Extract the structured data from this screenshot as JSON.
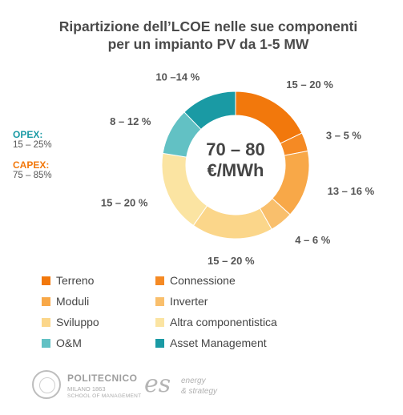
{
  "chart_data": {
    "type": "donut",
    "title_lines": [
      "Ripartizione dell’LCOE nelle sue componenti",
      "per un impianto PV da 1-5 MW"
    ],
    "center_text": [
      "70 – 80",
      "€/MWh"
    ],
    "series": [
      {
        "name": "Terreno",
        "value": 17.5,
        "label": "15 – 20 %",
        "color": "#f2780c"
      },
      {
        "name": "Connessione",
        "value": 4,
        "label": "3 – 5 %",
        "color": "#f58a24"
      },
      {
        "name": "Moduli",
        "value": 14.5,
        "label": "13 – 16 %",
        "color": "#f8a848"
      },
      {
        "name": "Inverter",
        "value": 5,
        "label": "4 – 6 %",
        "color": "#f9bf6c"
      },
      {
        "name": "Sviluppo",
        "value": 17.5,
        "label": "15 – 20 %",
        "color": "#fbd68a"
      },
      {
        "name": "Altra componentistica",
        "value": 17.5,
        "label": "15 – 20 %",
        "color": "#fbe4a2"
      },
      {
        "name": "O&M",
        "value": 10,
        "label": "8 – 12 %",
        "color": "#62c1c4"
      },
      {
        "name": "Asset Management",
        "value": 12,
        "label": "10 –14 %",
        "color": "#1a9aa4"
      }
    ],
    "legend_order": [
      "Terreno",
      "Connessione",
      "Moduli",
      "Inverter",
      "Sviluppo",
      "Altra componentistica",
      "O&M",
      "Asset Management"
    ],
    "legend_position": "bottom"
  },
  "groups": {
    "opex_label": "OPEX:",
    "opex_value": "15 – 25%",
    "opex_color": "#1a9aa4",
    "capex_label": "CAPEX:",
    "capex_value": "75 – 85%",
    "capex_color": "#f2780c"
  },
  "footer": {
    "poli_name": "POLITECNICO",
    "poli_sub1": "MILANO 1863",
    "poli_sub2": "SCHOOL OF MANAGEMENT",
    "es_mark": "es",
    "es_line1": "energy",
    "es_line2": "& strategy"
  }
}
